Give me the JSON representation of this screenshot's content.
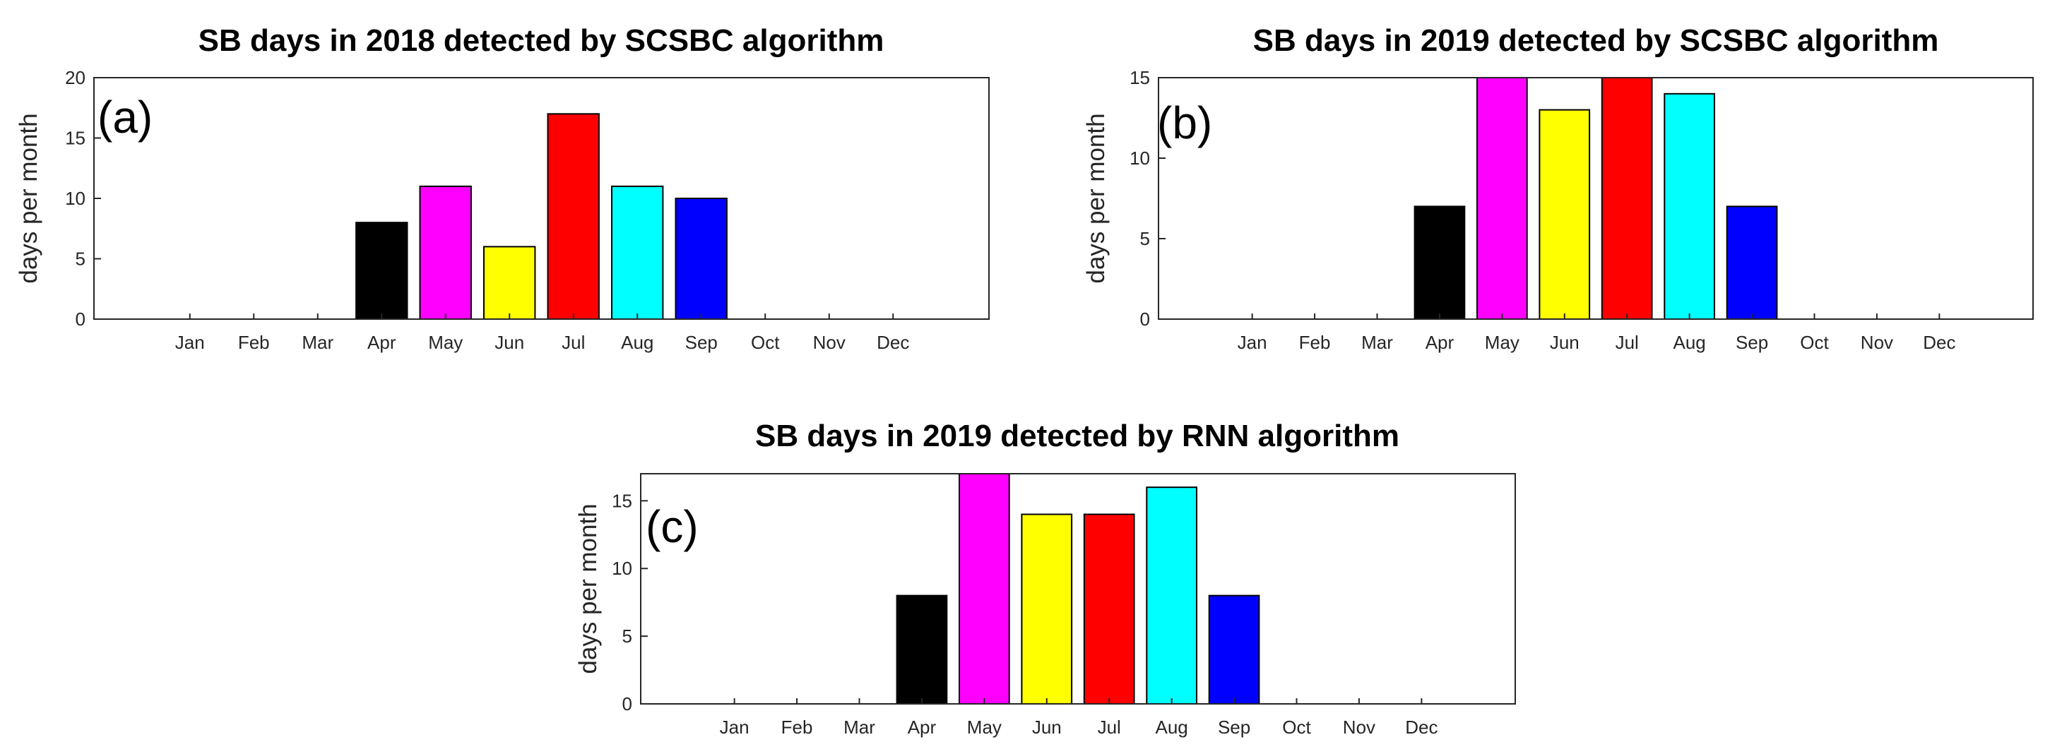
{
  "chart_data": [
    {
      "type": "bar",
      "title": "SB days in 2018 detected by SCSBC algorithm",
      "panel_label": "(a)",
      "xlabel": "",
      "ylabel": "days per month",
      "ylim": [
        0,
        20
      ],
      "yticks": [
        0,
        5,
        10,
        15,
        20
      ],
      "categories": [
        "Jan",
        "Feb",
        "Mar",
        "Apr",
        "May",
        "Jun",
        "Jul",
        "Aug",
        "Sep",
        "Oct",
        "Nov",
        "Dec"
      ],
      "values": [
        0,
        0,
        0,
        8,
        11,
        6,
        17,
        11,
        10,
        0,
        0,
        0
      ],
      "colors": [
        "#000000",
        "#000000",
        "#000000",
        "#000000",
        "#ff00ff",
        "#ffff00",
        "#ff0000",
        "#00ffff",
        "#0000ff",
        "#000000",
        "#000000",
        "#000000"
      ]
    },
    {
      "type": "bar",
      "title": "SB days in 2019 detected by SCSBC algorithm",
      "panel_label": "(b)",
      "xlabel": "",
      "ylabel": "days per month",
      "ylim": [
        0,
        15
      ],
      "yticks": [
        0,
        5,
        10,
        15
      ],
      "categories": [
        "Jan",
        "Feb",
        "Mar",
        "Apr",
        "May",
        "Jun",
        "Jul",
        "Aug",
        "Sep",
        "Oct",
        "Nov",
        "Dec"
      ],
      "values": [
        0,
        0,
        0,
        7,
        15,
        13,
        15,
        14,
        7,
        0,
        0,
        0
      ],
      "colors": [
        "#000000",
        "#000000",
        "#000000",
        "#000000",
        "#ff00ff",
        "#ffff00",
        "#ff0000",
        "#00ffff",
        "#0000ff",
        "#000000",
        "#000000",
        "#000000"
      ]
    },
    {
      "type": "bar",
      "title": "SB days in 2019 detected by RNN algorithm",
      "panel_label": "(c)",
      "xlabel": "",
      "ylabel": "days per month",
      "ylim": [
        0,
        17
      ],
      "yticks": [
        0,
        5,
        10,
        15
      ],
      "categories": [
        "Jan",
        "Feb",
        "Mar",
        "Apr",
        "May",
        "Jun",
        "Jul",
        "Aug",
        "Sep",
        "Oct",
        "Nov",
        "Dec"
      ],
      "values": [
        0,
        0,
        0,
        8,
        17,
        14,
        14,
        16,
        8,
        0,
        0,
        0
      ],
      "colors": [
        "#000000",
        "#000000",
        "#000000",
        "#000000",
        "#ff00ff",
        "#ffff00",
        "#ff0000",
        "#00ffff",
        "#0000ff",
        "#000000",
        "#000000",
        "#000000"
      ]
    }
  ]
}
